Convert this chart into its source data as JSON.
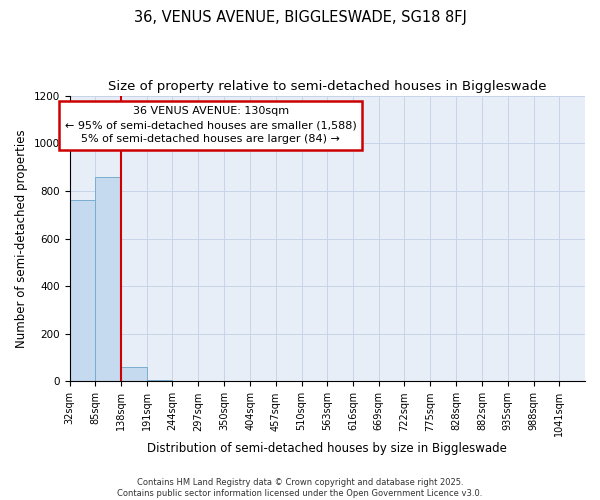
{
  "title": "36, VENUS AVENUE, BIGGLESWADE, SG18 8FJ",
  "subtitle": "Size of property relative to semi-detached houses in Biggleswade",
  "xlabel": "Distribution of semi-detached houses by size in Biggleswade",
  "ylabel": "Number of semi-detached properties",
  "bin_edges": [
    32,
    85,
    138,
    191,
    244,
    297,
    350,
    404,
    457,
    510,
    563,
    616,
    669,
    722,
    775,
    828,
    882,
    935,
    988,
    1041,
    1094
  ],
  "bar_heights": [
    760,
    860,
    60,
    5,
    0,
    0,
    0,
    0,
    0,
    0,
    0,
    0,
    0,
    0,
    0,
    0,
    0,
    0,
    0,
    0
  ],
  "bar_color": "#c5d9ef",
  "bar_edge_color": "#7aadcf",
  "grid_color": "#c8d4e8",
  "background_color": "#e8eef8",
  "vline_x": 138,
  "vline_color": "#cc0000",
  "ylim": [
    0,
    1200
  ],
  "annotation_text_line1": "36 VENUS AVENUE: 130sqm",
  "annotation_text_line2": "← 95% of semi-detached houses are smaller (1,588)",
  "annotation_text_line3": "5% of semi-detached houses are larger (84) →",
  "annotation_box_color": "#cc0000",
  "annotation_box_facecolor": "#ffffff",
  "footer_line1": "Contains HM Land Registry data © Crown copyright and database right 2025.",
  "footer_line2": "Contains public sector information licensed under the Open Government Licence v3.0.",
  "title_fontsize": 10.5,
  "subtitle_fontsize": 9.5,
  "tick_label_fontsize": 7,
  "ylabel_fontsize": 8.5,
  "xlabel_fontsize": 8.5,
  "annotation_fontsize": 8,
  "footer_fontsize": 6
}
